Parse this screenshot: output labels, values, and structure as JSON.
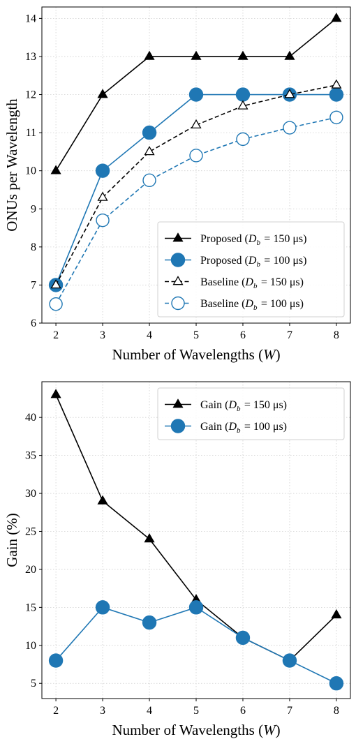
{
  "chart_data": [
    {
      "type": "line",
      "xlabel": "Number of Wavelengths (W)",
      "ylabel": "ONUs per Wavelength",
      "x": [
        2,
        3,
        4,
        5,
        6,
        7,
        8
      ],
      "xlim": [
        1.7,
        8.3
      ],
      "ylim": [
        6,
        14.3
      ],
      "xticks": [
        2,
        3,
        4,
        5,
        6,
        7,
        8
      ],
      "yticks": [
        6,
        7,
        8,
        9,
        10,
        11,
        12,
        13,
        14
      ],
      "grid": true,
      "legend_position": "lower right",
      "series": [
        {
          "name": "Proposed (Db = 150 μs)",
          "values": [
            10,
            12,
            13,
            13,
            13,
            13,
            14
          ],
          "color": "#000000",
          "linestyle": "solid",
          "marker": "triangle-filled"
        },
        {
          "name": "Proposed (Db = 100 μs)",
          "values": [
            7,
            10,
            11,
            12,
            12,
            12,
            12
          ],
          "color": "#1f77b4",
          "linestyle": "solid",
          "marker": "circle-filled"
        },
        {
          "name": "Baseline (Db = 150 μs)",
          "values": [
            7.0,
            9.3,
            10.5,
            11.2,
            11.7,
            12.0,
            12.25
          ],
          "color": "#000000",
          "linestyle": "dashed",
          "marker": "triangle-open"
        },
        {
          "name": "Baseline (Db = 100 μs)",
          "values": [
            6.5,
            8.7,
            9.75,
            10.4,
            10.83,
            11.13,
            11.4
          ],
          "color": "#1f77b4",
          "linestyle": "dashed",
          "marker": "circle-open"
        }
      ]
    },
    {
      "type": "line",
      "xlabel": "Number of Wavelengths (W)",
      "ylabel": "Gain (%)",
      "x": [
        2,
        3,
        4,
        5,
        6,
        7,
        8
      ],
      "xlim": [
        1.7,
        8.3
      ],
      "ylim": [
        3.0,
        44.7
      ],
      "xticks": [
        2,
        3,
        4,
        5,
        6,
        7,
        8
      ],
      "yticks": [
        5,
        10,
        15,
        20,
        25,
        30,
        35,
        40
      ],
      "grid": true,
      "legend_position": "upper right",
      "series": [
        {
          "name": "Gain (Db = 150 μs)",
          "values": [
            43,
            29,
            24,
            16,
            11,
            8,
            14
          ],
          "color": "#000000",
          "linestyle": "solid",
          "marker": "triangle-filled"
        },
        {
          "name": "Gain (Db = 100 μs)",
          "values": [
            8,
            15,
            13,
            15,
            11,
            8,
            5
          ],
          "color": "#1f77b4",
          "linestyle": "solid",
          "marker": "circle-filled"
        }
      ]
    }
  ]
}
